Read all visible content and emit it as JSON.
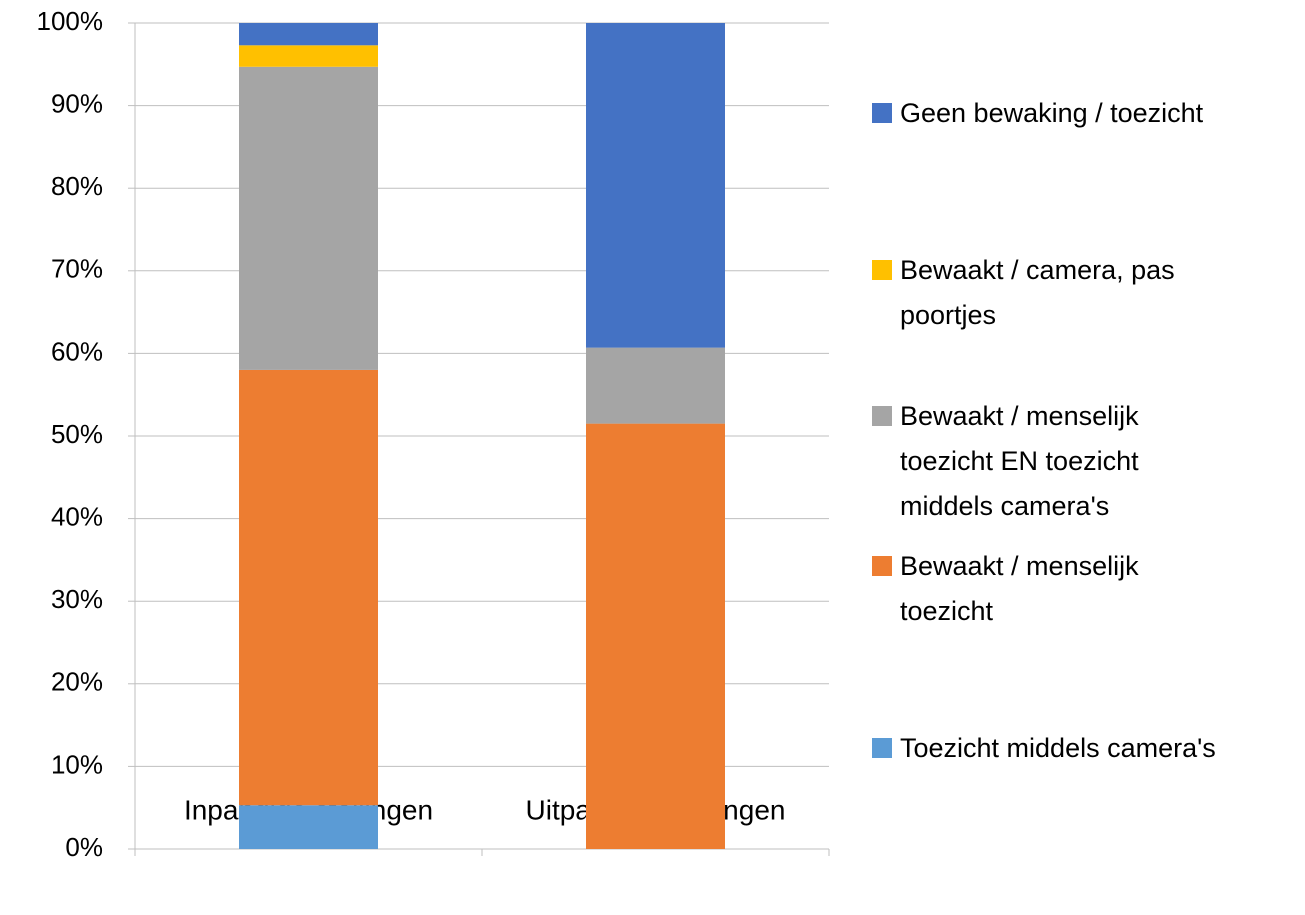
{
  "chart_data": {
    "type": "bar",
    "stacked": true,
    "categories": [
      "Inpandige stallingen",
      "Uitpandige stallingen"
    ],
    "series": [
      {
        "name": "Toezicht middels camera's",
        "color": "#5b9bd5",
        "values": [
          5.3,
          0
        ]
      },
      {
        "name": "Bewaakt / menselijk toezicht",
        "color": "#ed7d31",
        "values": [
          52.7,
          51.5
        ]
      },
      {
        "name": "Bewaakt / menselijk toezicht EN toezicht middels camera's",
        "color": "#a5a5a5",
        "values": [
          36.7,
          9.2
        ]
      },
      {
        "name": "Bewaakt / camera, pas poortjes",
        "color": "#ffc000",
        "values": [
          2.6,
          0
        ]
      },
      {
        "name": "Geen bewaking / toezicht",
        "color": "#4472c4",
        "values": [
          2.7,
          39.3
        ]
      }
    ],
    "ylim": [
      0,
      100
    ],
    "yticks": [
      {
        "value": 0,
        "label": "0%"
      },
      {
        "value": 10,
        "label": "10%"
      },
      {
        "value": 20,
        "label": "20%"
      },
      {
        "value": 30,
        "label": "30%"
      },
      {
        "value": 40,
        "label": "40%"
      },
      {
        "value": 50,
        "label": "50%"
      },
      {
        "value": 60,
        "label": "60%"
      },
      {
        "value": 70,
        "label": "70%"
      },
      {
        "value": 80,
        "label": "80%"
      },
      {
        "value": 90,
        "label": "90%"
      },
      {
        "value": 100,
        "label": "100%"
      }
    ],
    "grid": true,
    "legend": "right"
  }
}
